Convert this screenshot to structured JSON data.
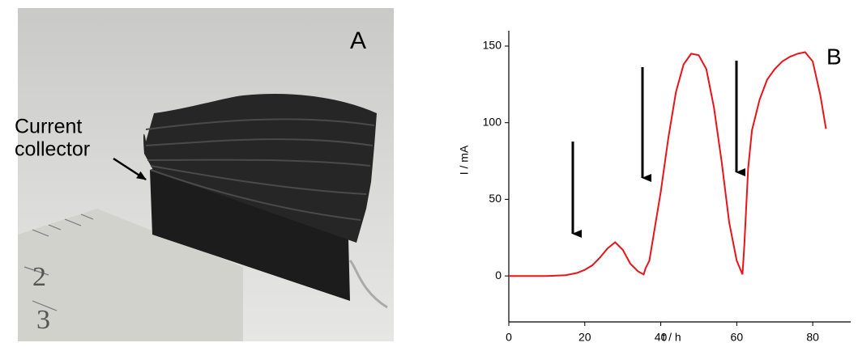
{
  "panel_a": {
    "label": "A",
    "annotation": [
      "Current",
      "collector"
    ]
  },
  "chart_data": {
    "type": "line",
    "panel_label": "B",
    "xlabel": "t / h",
    "ylabel": "I / mA",
    "x": [
      0,
      5,
      10,
      15,
      18,
      20,
      22,
      24,
      26,
      28,
      30,
      32,
      34,
      35.5,
      36,
      37,
      38,
      40,
      42,
      44,
      46,
      48,
      50,
      52,
      54,
      56,
      58,
      60,
      61.5,
      62,
      63,
      64,
      66,
      68,
      70,
      72,
      74,
      76,
      78,
      80,
      82,
      83.5
    ],
    "series": [
      {
        "color": "#e8141a",
        "values": [
          0,
          0,
          0,
          0.5,
          2,
          4,
          7,
          12,
          18,
          22,
          17,
          8,
          3,
          1,
          5,
          10,
          25,
          55,
          90,
          120,
          138,
          145,
          144,
          135,
          110,
          75,
          35,
          10,
          1,
          20,
          70,
          95,
          115,
          128,
          135,
          140,
          143,
          145,
          146,
          140,
          118,
          96
        ]
      }
    ],
    "xlim": [
      0,
      90
    ],
    "ylim": [
      -30,
      160
    ],
    "xticks": [
      0,
      20,
      40,
      60,
      80
    ],
    "yticks": [
      0,
      50,
      100,
      150
    ]
  }
}
